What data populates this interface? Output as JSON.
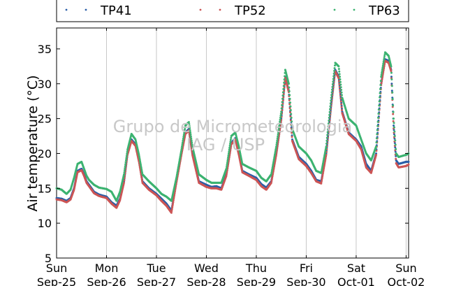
{
  "chart_data": {
    "type": "scatter",
    "ylabel": "Air temperature (°C)",
    "ylim": [
      5,
      38
    ],
    "xlim": [
      0,
      7.05
    ],
    "yticks": [
      5,
      10,
      15,
      20,
      25,
      30,
      35
    ],
    "grid": "vertical",
    "legend_position": "top",
    "watermark": [
      "Grupo de Micrometeorologia",
      "IAG / USP"
    ],
    "xticks": [
      {
        "day": "Sun",
        "date": "Sep-25",
        "x": 0
      },
      {
        "day": "Mon",
        "date": "Sep-26",
        "x": 1
      },
      {
        "day": "Tue",
        "date": "Sep-27",
        "x": 2
      },
      {
        "day": "Wed",
        "date": "Sep-28",
        "x": 3
      },
      {
        "day": "Thu",
        "date": "Sep-29",
        "x": 4
      },
      {
        "day": "Fri",
        "date": "Sep-30",
        "x": 5
      },
      {
        "day": "Sat",
        "date": "Oct-01",
        "x": 6
      },
      {
        "day": "Sun",
        "date": "Oct-02",
        "x": 7
      }
    ],
    "series": [
      {
        "name": "TP41",
        "color": "#2b5fa8",
        "x": [
          0,
          0.1,
          0.2,
          0.28,
          0.35,
          0.42,
          0.5,
          0.55,
          0.6,
          0.65,
          0.75,
          0.85,
          1,
          1.1,
          1.2,
          1.27,
          1.35,
          1.42,
          1.5,
          1.58,
          1.65,
          1.72,
          1.85,
          2,
          2.1,
          2.2,
          2.25,
          2.3,
          2.4,
          2.5,
          2.58,
          2.65,
          2.72,
          2.85,
          3,
          3.1,
          3.2,
          3.3,
          3.4,
          3.5,
          3.58,
          3.65,
          3.72,
          3.85,
          4,
          4.1,
          4.2,
          4.3,
          4.4,
          4.5,
          4.58,
          4.65,
          4.72,
          4.85,
          5,
          5.1,
          5.2,
          5.3,
          5.4,
          5.5,
          5.58,
          5.65,
          5.72,
          5.85,
          6,
          6.1,
          6.2,
          6.3,
          6.4,
          6.5,
          6.58,
          6.65,
          6.7,
          6.75,
          6.8,
          6.85,
          7,
          7.05
        ],
        "y": [
          13.6,
          13.5,
          13.2,
          13.6,
          15,
          17.5,
          17.8,
          17,
          16,
          15.5,
          14.5,
          14.1,
          13.8,
          13,
          12.5,
          13.5,
          16,
          20,
          22,
          21.3,
          19,
          16,
          15,
          14.2,
          13.5,
          12.8,
          12.3,
          11.8,
          16,
          20,
          23,
          23.5,
          20,
          16,
          15.5,
          15.2,
          15.3,
          15,
          17,
          21.5,
          22.2,
          20,
          17.5,
          17,
          16.5,
          15.6,
          15.1,
          16,
          20,
          25,
          31,
          29,
          22,
          19.5,
          18.5,
          17.5,
          16.2,
          16,
          20,
          27,
          32,
          31,
          26,
          23,
          22,
          21,
          18.5,
          17.5,
          20,
          30,
          33.5,
          33.3,
          32,
          24,
          19,
          18.5,
          18.8,
          18.8
        ]
      },
      {
        "name": "TP52",
        "color": "#cc5555",
        "x": [
          0,
          0.1,
          0.2,
          0.28,
          0.35,
          0.42,
          0.5,
          0.55,
          0.6,
          0.65,
          0.75,
          0.85,
          1,
          1.1,
          1.2,
          1.27,
          1.35,
          1.42,
          1.5,
          1.58,
          1.65,
          1.72,
          1.85,
          2,
          2.1,
          2.2,
          2.25,
          2.3,
          2.4,
          2.5,
          2.58,
          2.65,
          2.72,
          2.85,
          3,
          3.1,
          3.2,
          3.3,
          3.4,
          3.5,
          3.58,
          3.65,
          3.72,
          3.85,
          4,
          4.1,
          4.2,
          4.3,
          4.4,
          4.5,
          4.58,
          4.65,
          4.72,
          4.85,
          5,
          5.1,
          5.2,
          5.3,
          5.4,
          5.5,
          5.58,
          5.65,
          5.72,
          5.85,
          6,
          6.1,
          6.2,
          6.3,
          6.4,
          6.5,
          6.58,
          6.65,
          6.7,
          6.75,
          6.8,
          6.85,
          7,
          7.05
        ],
        "y": [
          13.4,
          13.3,
          13,
          13.4,
          14.8,
          17.3,
          17.6,
          16.8,
          15.8,
          15.3,
          14.3,
          13.9,
          13.6,
          12.8,
          12.2,
          13.3,
          15.8,
          19.8,
          21.8,
          21.1,
          18.8,
          15.8,
          14.8,
          14,
          13.2,
          12.5,
          12,
          11.5,
          15.8,
          19.8,
          22.8,
          23.3,
          19.8,
          15.8,
          15.2,
          15,
          15,
          14.8,
          16.8,
          21.3,
          22,
          19.8,
          17.3,
          16.8,
          16.2,
          15.3,
          14.8,
          15.8,
          19.8,
          24.8,
          30.8,
          28.8,
          21.8,
          19.2,
          18.2,
          17.2,
          16,
          15.7,
          19.8,
          26.8,
          31.8,
          30.8,
          25.8,
          22.8,
          21.8,
          20.6,
          18,
          17.2,
          19.8,
          29.8,
          33.3,
          33,
          31.8,
          23.6,
          18.6,
          18,
          18.2,
          18.4
        ]
      },
      {
        "name": "TP63",
        "color": "#3cb371",
        "x": [
          0,
          0.1,
          0.2,
          0.28,
          0.35,
          0.42,
          0.5,
          0.55,
          0.6,
          0.65,
          0.75,
          0.85,
          1,
          1.1,
          1.2,
          1.27,
          1.35,
          1.42,
          1.5,
          1.58,
          1.65,
          1.72,
          1.85,
          2,
          2.1,
          2.2,
          2.25,
          2.3,
          2.4,
          2.5,
          2.58,
          2.65,
          2.72,
          2.85,
          3,
          3.1,
          3.2,
          3.3,
          3.4,
          3.5,
          3.58,
          3.65,
          3.72,
          3.85,
          4,
          4.1,
          4.2,
          4.3,
          4.4,
          4.5,
          4.58,
          4.65,
          4.72,
          4.85,
          5,
          5.1,
          5.2,
          5.3,
          5.4,
          5.5,
          5.58,
          5.65,
          5.72,
          5.85,
          6,
          6.1,
          6.2,
          6.3,
          6.4,
          6.5,
          6.58,
          6.65,
          6.7,
          6.75,
          6.8,
          6.85,
          7,
          7.05
        ],
        "y": [
          15,
          14.8,
          14.2,
          14.8,
          16.5,
          18.5,
          18.8,
          17.8,
          16.8,
          16.2,
          15.5,
          15.1,
          14.9,
          14.5,
          13.2,
          14.5,
          17,
          20.5,
          22.8,
          22,
          19.8,
          17,
          16,
          15,
          14.2,
          13.8,
          13.5,
          13.2,
          16.5,
          20.5,
          24,
          24.5,
          21,
          17,
          16.2,
          15.8,
          15.8,
          15.8,
          17.8,
          22.5,
          23,
          21,
          18.5,
          18,
          17.5,
          16.5,
          16,
          17,
          21,
          26,
          32,
          30,
          23.5,
          21,
          20,
          19,
          17.5,
          17.2,
          21,
          28,
          33,
          32.5,
          28,
          25,
          24,
          22,
          20,
          19,
          21,
          31,
          34.5,
          34,
          32.5,
          25,
          20,
          19.5,
          19.8,
          20
        ]
      }
    ]
  }
}
